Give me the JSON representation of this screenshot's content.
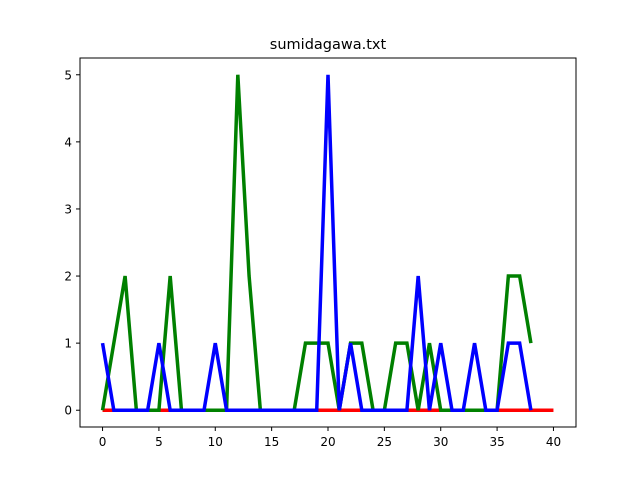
{
  "chart_data": {
    "type": "line",
    "title": "sumidagawa.txt",
    "xlabel": "",
    "ylabel": "",
    "xlim": [
      -2,
      42
    ],
    "ylim": [
      -0.25,
      5.25
    ],
    "xticks": [
      0,
      5,
      10,
      15,
      20,
      25,
      30,
      35,
      40
    ],
    "yticks": [
      0,
      1,
      2,
      3,
      4,
      5
    ],
    "grid": false,
    "legend": "none",
    "series": [
      {
        "color": "#ff0000",
        "x": [
          0,
          1,
          2,
          3,
          4,
          5,
          6,
          7,
          8,
          9,
          10,
          11,
          12,
          13,
          14,
          15,
          16,
          17,
          18,
          19,
          20,
          21,
          22,
          23,
          24,
          25,
          26,
          27,
          28,
          29,
          30,
          31,
          32,
          33,
          34,
          35,
          36,
          37,
          38,
          39,
          40
        ],
        "y": [
          0,
          0,
          0,
          0,
          0,
          0,
          0,
          0,
          0,
          0,
          0,
          0,
          0,
          0,
          0,
          0,
          0,
          0,
          0,
          0,
          0,
          0,
          0,
          0,
          0,
          0,
          0,
          0,
          0,
          0,
          0,
          0,
          0,
          0,
          0,
          0,
          0,
          0,
          0,
          0,
          0
        ]
      },
      {
        "color": "#008000",
        "x": [
          0,
          1,
          2,
          3,
          4,
          5,
          6,
          7,
          8,
          9,
          10,
          11,
          12,
          13,
          14,
          15,
          16,
          17,
          18,
          19,
          20,
          21,
          22,
          23,
          24,
          25,
          26,
          27,
          28,
          29,
          30,
          31,
          32,
          33,
          34,
          35,
          36,
          37,
          38
        ],
        "y": [
          0,
          1,
          2,
          0,
          0,
          0,
          2,
          0,
          0,
          0,
          0,
          0,
          5,
          2,
          0,
          0,
          0,
          0,
          1,
          1,
          1,
          0,
          1,
          1,
          0,
          0,
          1,
          1,
          0,
          1,
          0,
          0,
          0,
          0,
          0,
          0,
          2,
          2,
          1
        ]
      },
      {
        "color": "#0000ff",
        "x": [
          0,
          1,
          2,
          3,
          4,
          5,
          6,
          7,
          8,
          9,
          10,
          11,
          12,
          13,
          14,
          15,
          16,
          17,
          18,
          19,
          20,
          21,
          22,
          23,
          24,
          25,
          26,
          27,
          28,
          29,
          30,
          31,
          32,
          33,
          34,
          35,
          36,
          37,
          38
        ],
        "y": [
          1,
          0,
          0,
          0,
          0,
          1,
          0,
          0,
          0,
          0,
          1,
          0,
          0,
          0,
          0,
          0,
          0,
          0,
          0,
          0,
          5,
          0,
          1,
          0,
          0,
          0,
          0,
          0,
          2,
          0,
          1,
          0,
          0,
          1,
          0,
          0,
          1,
          1,
          0
        ]
      }
    ]
  }
}
